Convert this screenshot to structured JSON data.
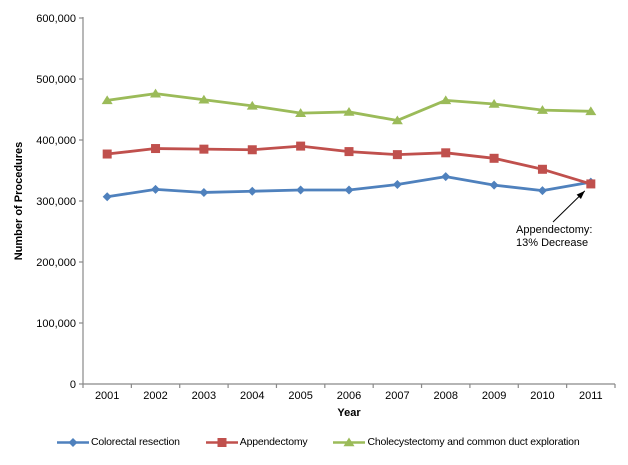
{
  "chart": {
    "ylabel": "Number of Procedures",
    "xlabel": "Year",
    "axis_color": "#898989",
    "text_color": "#000000",
    "background": "#ffffff",
    "annotation": {
      "line1": "Appendectomy:",
      "line2": "13% Decrease",
      "target_year": "2011",
      "target_series": "Appendectomy"
    }
  },
  "chart_data": {
    "type": "line",
    "x": [
      "2001",
      "2002",
      "2003",
      "2004",
      "2005",
      "2006",
      "2007",
      "2008",
      "2009",
      "2010",
      "2011"
    ],
    "series": [
      {
        "name": "Colorectal resection",
        "color": "#4F81BD",
        "marker": "diamond",
        "values": [
          307000,
          319000,
          314000,
          316000,
          318000,
          318000,
          327000,
          340000,
          326000,
          317000,
          331000
        ]
      },
      {
        "name": "Appendectomy",
        "color": "#C0504D",
        "marker": "square",
        "values": [
          377000,
          386000,
          385000,
          384000,
          390000,
          381000,
          376000,
          379000,
          370000,
          352000,
          328000
        ]
      },
      {
        "name": "Cholecystectomy and common duct exploration",
        "color": "#9BBB59",
        "marker": "triangle",
        "values": [
          465000,
          476000,
          466000,
          456000,
          444000,
          446000,
          432000,
          465000,
          459000,
          449000,
          447000
        ]
      }
    ],
    "title": "",
    "xlabel": "Year",
    "ylabel": "Number of Procedures",
    "ylim": [
      0,
      600000
    ],
    "ytick_interval": 100000,
    "grid": false,
    "legend_position": "bottom"
  }
}
